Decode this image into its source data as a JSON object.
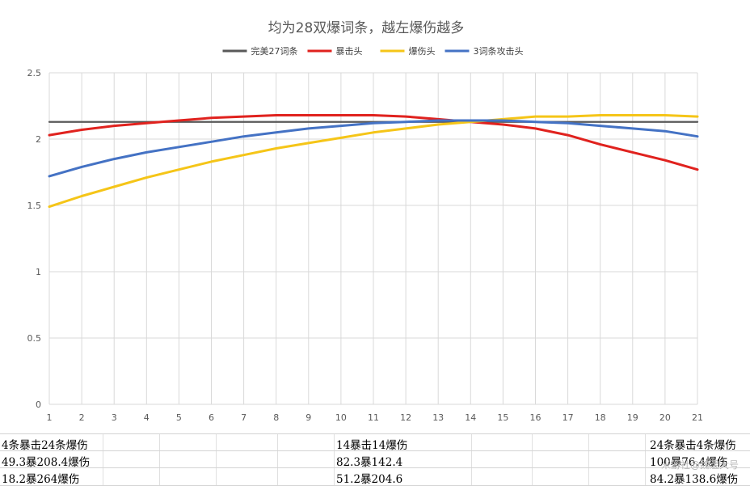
{
  "chart_data": {
    "type": "line",
    "title": "均为28双爆词条，越左爆伤越多",
    "x": [
      1,
      2,
      3,
      4,
      5,
      6,
      7,
      8,
      9,
      10,
      11,
      12,
      13,
      14,
      15,
      16,
      17,
      18,
      19,
      20,
      21
    ],
    "xlim": [
      1,
      21
    ],
    "ylim": [
      0,
      2.5
    ],
    "yticks": [
      "0",
      "0.5",
      "1",
      "1.5",
      "2",
      "2.5"
    ],
    "xlabel": "",
    "ylabel": "",
    "grid": true,
    "legend_position": "top",
    "series": [
      {
        "name": "完美27词条",
        "color": "#595959",
        "values": [
          2.13,
          2.13,
          2.13,
          2.13,
          2.13,
          2.13,
          2.13,
          2.13,
          2.13,
          2.13,
          2.13,
          2.13,
          2.13,
          2.13,
          2.13,
          2.13,
          2.13,
          2.13,
          2.13,
          2.13,
          2.13
        ]
      },
      {
        "name": "暴击头",
        "color": "#e0221e",
        "values": [
          2.03,
          2.07,
          2.1,
          2.12,
          2.14,
          2.16,
          2.17,
          2.18,
          2.18,
          2.18,
          2.18,
          2.17,
          2.15,
          2.13,
          2.11,
          2.08,
          2.03,
          1.96,
          1.9,
          1.84,
          1.77
        ]
      },
      {
        "name": "爆伤头",
        "color": "#f5c518",
        "values": [
          1.49,
          1.57,
          1.64,
          1.71,
          1.77,
          1.83,
          1.88,
          1.93,
          1.97,
          2.01,
          2.05,
          2.08,
          2.11,
          2.13,
          2.15,
          2.17,
          2.17,
          2.18,
          2.18,
          2.18,
          2.17
        ]
      },
      {
        "name": "3词条攻击头",
        "color": "#4472c4",
        "values": [
          1.72,
          1.79,
          1.85,
          1.9,
          1.94,
          1.98,
          2.02,
          2.05,
          2.08,
          2.1,
          2.12,
          2.13,
          2.14,
          2.14,
          2.14,
          2.13,
          2.12,
          2.1,
          2.08,
          2.06,
          2.02
        ]
      }
    ]
  },
  "table": {
    "rows": [
      {
        "left": "4条暴击24条爆伤",
        "mid": "14暴击14爆伤",
        "right": "24条暴击4条爆伤"
      },
      {
        "left": "49.3暴208.4爆伤",
        "mid": "82.3暴142.4",
        "right": "100暴76.4爆伤"
      },
      {
        "left": "18.2暴264爆伤",
        "mid": "51.2暴204.6",
        "right": "84.2暴138.6爆伤"
      }
    ]
  },
  "watermark": "米游社@魏温大号"
}
